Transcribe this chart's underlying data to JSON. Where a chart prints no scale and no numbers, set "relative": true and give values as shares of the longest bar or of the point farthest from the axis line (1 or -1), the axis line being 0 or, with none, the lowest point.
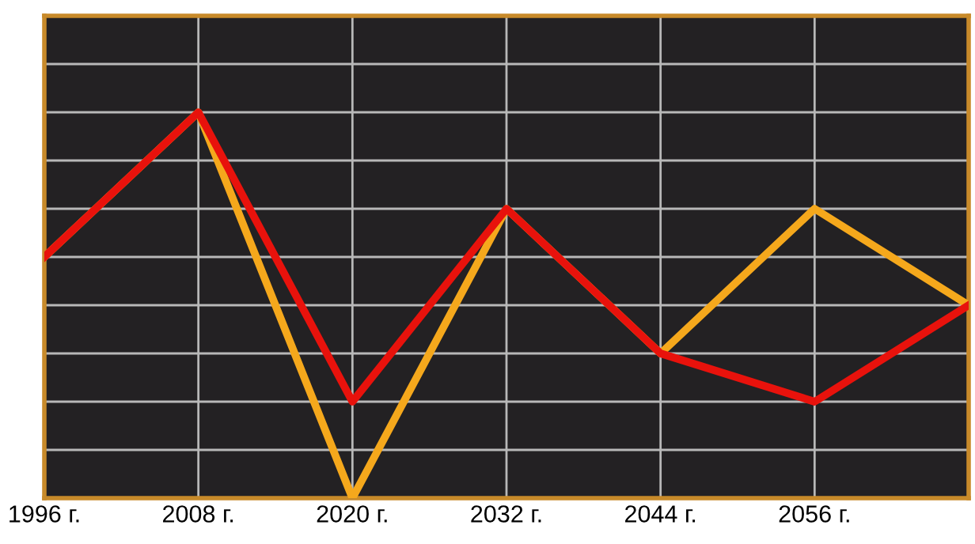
{
  "chart_data": {
    "type": "line",
    "relative": true,
    "grid": true,
    "tick_labels": "x",
    "line_style": "solid",
    "categories": [
      "1996 г.",
      "2008 г.",
      "2020 г.",
      "2032 г.",
      "2044 г.",
      "2056 г.",
      null
    ],
    "series": [
      {
        "color": "#f5a81c",
        "values": [
          0.625,
          1,
          0,
          0.75,
          0.375,
          0.75,
          0.5
        ]
      },
      {
        "color": "#e8120c",
        "values": [
          0.625,
          1,
          0.25,
          0.75,
          0.375,
          0.25,
          0.5
        ]
      }
    ]
  }
}
